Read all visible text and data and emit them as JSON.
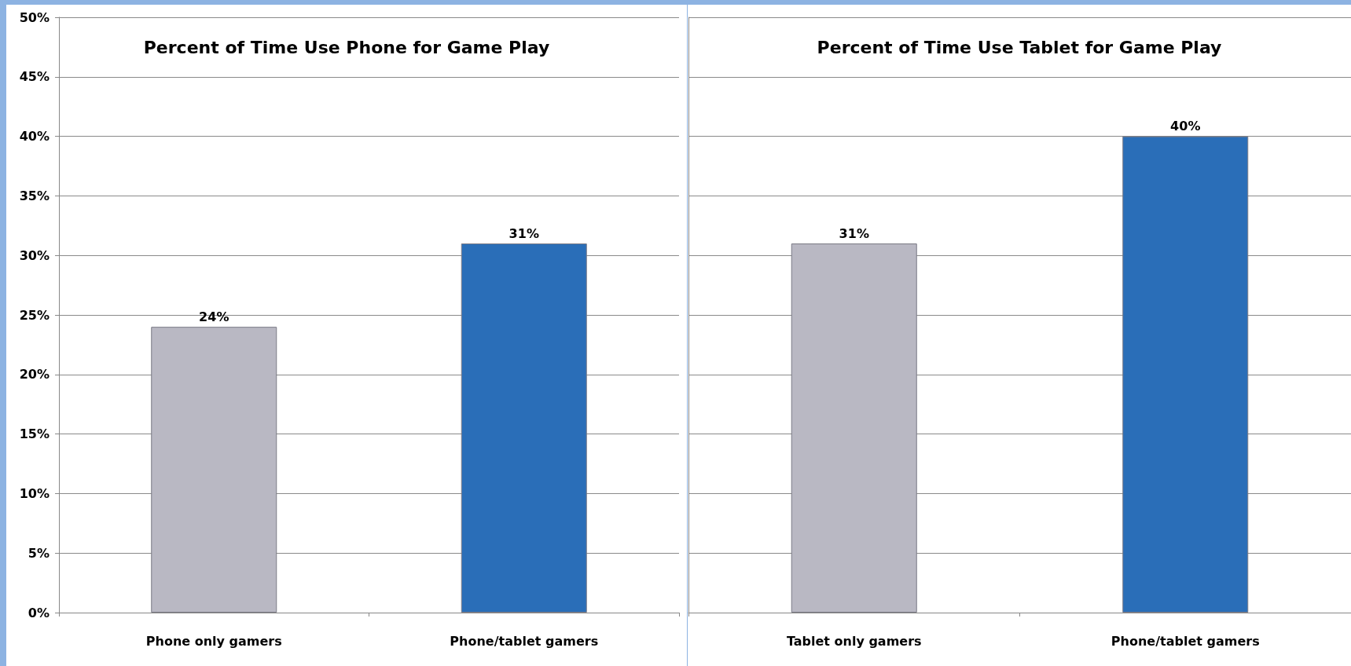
{
  "chart_data": [
    {
      "type": "bar",
      "title": "Percent of Time Use Phone for Game Play",
      "categories": [
        "Phone only gamers",
        "Phone/tablet gamers"
      ],
      "values": [
        24,
        31
      ],
      "colors": [
        "#b9b8c3",
        "#2a6eb8"
      ],
      "value_labels": [
        "24%",
        "31%"
      ],
      "ylim": [
        0,
        50
      ],
      "yticks": [
        {
          "value": 0,
          "label": "0%"
        },
        {
          "value": 5,
          "label": "5%"
        },
        {
          "value": 10,
          "label": "10%"
        },
        {
          "value": 15,
          "label": "15%"
        },
        {
          "value": 20,
          "label": "20%"
        },
        {
          "value": 25,
          "label": "25%"
        },
        {
          "value": 30,
          "label": "30%"
        },
        {
          "value": 35,
          "label": "35%"
        },
        {
          "value": 40,
          "label": "40%"
        },
        {
          "value": 45,
          "label": "45%"
        },
        {
          "value": 50,
          "label": "50%"
        }
      ],
      "grid": "y"
    },
    {
      "type": "bar",
      "title": "Percent of Time Use Tablet for Game Play",
      "categories": [
        "Tablet only gamers",
        "Phone/tablet gamers"
      ],
      "values": [
        31,
        40
      ],
      "colors": [
        "#b9b8c3",
        "#2a6eb8"
      ],
      "value_labels": [
        "31%",
        "40%"
      ],
      "ylim": [
        0,
        50
      ],
      "yticks": [
        {
          "value": 0,
          "label": null
        },
        {
          "value": 5,
          "label": null
        },
        {
          "value": 10,
          "label": null
        },
        {
          "value": 15,
          "label": null
        },
        {
          "value": 20,
          "label": null
        },
        {
          "value": 25,
          "label": null
        },
        {
          "value": 30,
          "label": null
        },
        {
          "value": 35,
          "label": null
        },
        {
          "value": 40,
          "label": null
        },
        {
          "value": 45,
          "label": null
        },
        {
          "value": 50,
          "label": null
        }
      ],
      "grid": "y",
      "tick_labels": "x"
    }
  ]
}
